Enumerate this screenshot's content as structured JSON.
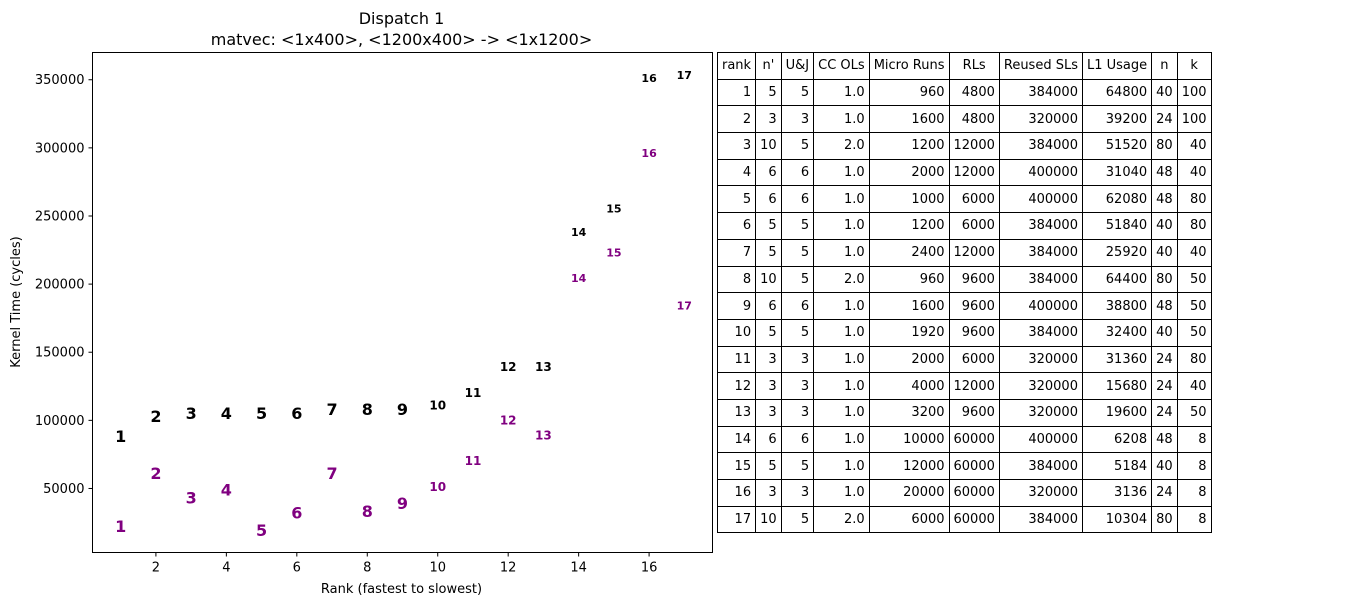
{
  "chart_data": {
    "type": "scatter",
    "title": "Dispatch 1",
    "subtitle": "matvec: <1x400>, <1200x400> -> <1x1200>",
    "xlabel": "Rank (fastest to slowest)",
    "ylabel": "Kernel Time (cycles)",
    "xlim": [
      0.2,
      17.8
    ],
    "ylim": [
      3000,
      370000
    ],
    "xticks": [
      2,
      4,
      6,
      8,
      10,
      12,
      14,
      16
    ],
    "yticks": [
      50000,
      100000,
      150000,
      200000,
      250000,
      300000,
      350000
    ],
    "marker": "rank number text label",
    "grid": false,
    "legend": "none",
    "series": [
      {
        "color": "#000000",
        "points": [
          {
            "x": 1,
            "y": 88000
          },
          {
            "x": 2,
            "y": 103000
          },
          {
            "x": 3,
            "y": 105000
          },
          {
            "x": 4,
            "y": 105000
          },
          {
            "x": 5,
            "y": 105000
          },
          {
            "x": 6,
            "y": 105000
          },
          {
            "x": 7,
            "y": 108000
          },
          {
            "x": 8,
            "y": 108000
          },
          {
            "x": 9,
            "y": 108000
          },
          {
            "x": 10,
            "y": 111000
          },
          {
            "x": 11,
            "y": 120000
          },
          {
            "x": 12,
            "y": 139000
          },
          {
            "x": 13,
            "y": 139000
          },
          {
            "x": 14,
            "y": 238000
          },
          {
            "x": 15,
            "y": 255000
          },
          {
            "x": 16,
            "y": 351000
          },
          {
            "x": 17,
            "y": 353000
          }
        ]
      },
      {
        "color": "#800080",
        "points": [
          {
            "x": 1,
            "y": 22000
          },
          {
            "x": 2,
            "y": 61000
          },
          {
            "x": 3,
            "y": 43000
          },
          {
            "x": 4,
            "y": 49000
          },
          {
            "x": 5,
            "y": 19000
          },
          {
            "x": 6,
            "y": 32000
          },
          {
            "x": 7,
            "y": 61000
          },
          {
            "x": 8,
            "y": 33000
          },
          {
            "x": 9,
            "y": 39000
          },
          {
            "x": 10,
            "y": 51000
          },
          {
            "x": 11,
            "y": 70000
          },
          {
            "x": 12,
            "y": 100000
          },
          {
            "x": 13,
            "y": 89000
          },
          {
            "x": 14,
            "y": 204000
          },
          {
            "x": 15,
            "y": 223000
          },
          {
            "x": 16,
            "y": 296000
          },
          {
            "x": 17,
            "y": 184000
          }
        ]
      }
    ]
  },
  "table": {
    "headers": [
      "rank",
      "n'",
      "U&J",
      "CC OLs",
      "Micro Runs",
      "RLs",
      "Reused SLs",
      "L1 Usage",
      "n",
      "k"
    ],
    "rows": [
      [
        "1",
        "5",
        "5",
        "1.0",
        "960",
        "4800",
        "384000",
        "64800",
        "40",
        "100"
      ],
      [
        "2",
        "3",
        "3",
        "1.0",
        "1600",
        "4800",
        "320000",
        "39200",
        "24",
        "100"
      ],
      [
        "3",
        "10",
        "5",
        "2.0",
        "1200",
        "12000",
        "384000",
        "51520",
        "80",
        "40"
      ],
      [
        "4",
        "6",
        "6",
        "1.0",
        "2000",
        "12000",
        "400000",
        "31040",
        "48",
        "40"
      ],
      [
        "5",
        "6",
        "6",
        "1.0",
        "1000",
        "6000",
        "400000",
        "62080",
        "48",
        "80"
      ],
      [
        "6",
        "5",
        "5",
        "1.0",
        "1200",
        "6000",
        "384000",
        "51840",
        "40",
        "80"
      ],
      [
        "7",
        "5",
        "5",
        "1.0",
        "2400",
        "12000",
        "384000",
        "25920",
        "40",
        "40"
      ],
      [
        "8",
        "10",
        "5",
        "2.0",
        "960",
        "9600",
        "384000",
        "64400",
        "80",
        "50"
      ],
      [
        "9",
        "6",
        "6",
        "1.0",
        "1600",
        "9600",
        "400000",
        "38800",
        "48",
        "50"
      ],
      [
        "10",
        "5",
        "5",
        "1.0",
        "1920",
        "9600",
        "384000",
        "32400",
        "40",
        "50"
      ],
      [
        "11",
        "3",
        "3",
        "1.0",
        "2000",
        "6000",
        "320000",
        "31360",
        "24",
        "80"
      ],
      [
        "12",
        "3",
        "3",
        "1.0",
        "4000",
        "12000",
        "320000",
        "15680",
        "24",
        "40"
      ],
      [
        "13",
        "3",
        "3",
        "1.0",
        "3200",
        "9600",
        "320000",
        "19600",
        "24",
        "50"
      ],
      [
        "14",
        "6",
        "6",
        "1.0",
        "10000",
        "60000",
        "400000",
        "6208",
        "48",
        "8"
      ],
      [
        "15",
        "5",
        "5",
        "1.0",
        "12000",
        "60000",
        "384000",
        "5184",
        "40",
        "8"
      ],
      [
        "16",
        "3",
        "3",
        "1.0",
        "20000",
        "60000",
        "320000",
        "3136",
        "24",
        "8"
      ],
      [
        "17",
        "10",
        "5",
        "2.0",
        "6000",
        "60000",
        "384000",
        "10304",
        "80",
        "8"
      ]
    ]
  }
}
